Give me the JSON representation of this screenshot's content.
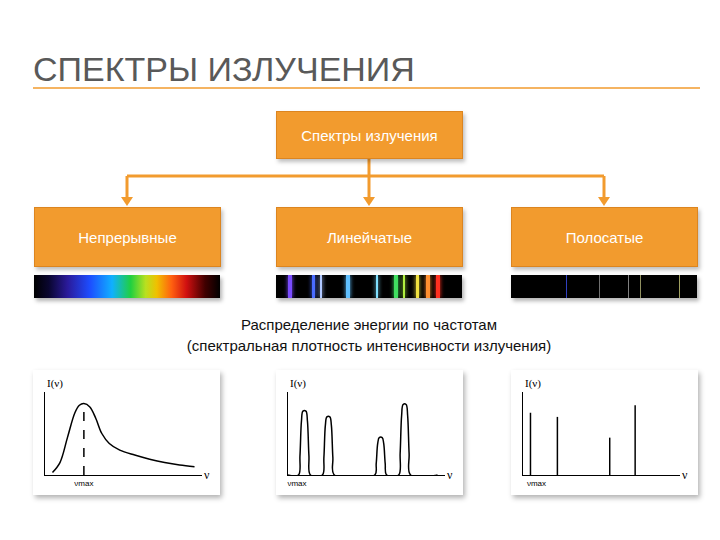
{
  "header": {
    "title": "СПЕКТРЫ ИЗЛУЧЕНИЯ"
  },
  "diagram": {
    "root": {
      "label": "Спектры излучения"
    },
    "children": [
      {
        "label": "Непрерывные"
      },
      {
        "label": "Линейчатые"
      },
      {
        "label": "Полосатые"
      }
    ]
  },
  "caption": [
    "Распределение энергии по частотам",
    "(спектральная плотность интенсивности излучения)"
  ],
  "chart_data": [
    {
      "type": "line",
      "color": "#000000",
      "xlabel": "ν",
      "ylabel": "I(ν)",
      "xlim": [
        0,
        10.5
      ],
      "ylim": [
        0,
        10
      ],
      "xticks": [
        {
          "value": 2.6,
          "label": "νmax"
        }
      ],
      "yticks": [],
      "series": [
        {
          "x": [
            0.5,
            1.0,
            1.5,
            2.0,
            2.3,
            2.6,
            3.0,
            3.4,
            3.8,
            4.3,
            5.0,
            6.0,
            7.0,
            8.0,
            9.0,
            10.0
          ],
          "values": [
            0.3,
            1.5,
            4.5,
            7.5,
            8.4,
            8.6,
            8.2,
            6.8,
            5.0,
            3.8,
            3.0,
            2.4,
            1.9,
            1.5,
            1.2,
            1.0
          ],
          "line_style": "smooth"
        },
        {
          "x": [
            2.6,
            2.6
          ],
          "values": [
            0,
            8.6
          ],
          "line_style": "dashed"
        }
      ]
    },
    {
      "type": "line",
      "color": "#000000",
      "xlabel": "ν",
      "ylabel": "I(ν)",
      "xlim": [
        0,
        10.5
      ],
      "ylim": [
        0,
        10
      ],
      "xticks": [
        {
          "value": 0.6,
          "label": "νmax"
        }
      ],
      "yticks": [],
      "series": [
        {
          "x": [
            0,
            0.7,
            0.8,
            0.9,
            1.0,
            1.2,
            1.3,
            1.4,
            1.5,
            2.3,
            2.4,
            2.5,
            2.6,
            2.8,
            2.9,
            3.0,
            3.1,
            5.8,
            5.9,
            6.0,
            6.1,
            6.3,
            6.4,
            6.5,
            6.6,
            7.4,
            7.5,
            7.6,
            7.7,
            7.9,
            8.0,
            8.1,
            8.2,
            10
          ],
          "values": [
            0,
            0,
            2.3,
            6.5,
            7.7,
            7.7,
            6.5,
            2.3,
            0,
            0,
            2.1,
            6.0,
            7.0,
            7.0,
            6.0,
            2.1,
            0,
            0,
            1.4,
            3.8,
            4.5,
            4.5,
            3.8,
            1.4,
            0,
            0,
            2.6,
            7.2,
            8.5,
            8.5,
            7.2,
            2.6,
            0,
            0
          ],
          "line_style": "smooth"
        }
      ]
    },
    {
      "type": "bar",
      "color": "#000000",
      "xlabel": "ν",
      "ylabel": "I(ν)",
      "xlim": [
        0,
        10.5
      ],
      "ylim": [
        0,
        10
      ],
      "xticks": [
        {
          "value": 0.9,
          "label": "νmax"
        }
      ],
      "yticks": [],
      "series": [
        {
          "x": [
            0.5,
            2.3,
            5.8,
            7.5
          ],
          "values": [
            7.5,
            7.0,
            4.5,
            8.4
          ]
        }
      ]
    }
  ]
}
